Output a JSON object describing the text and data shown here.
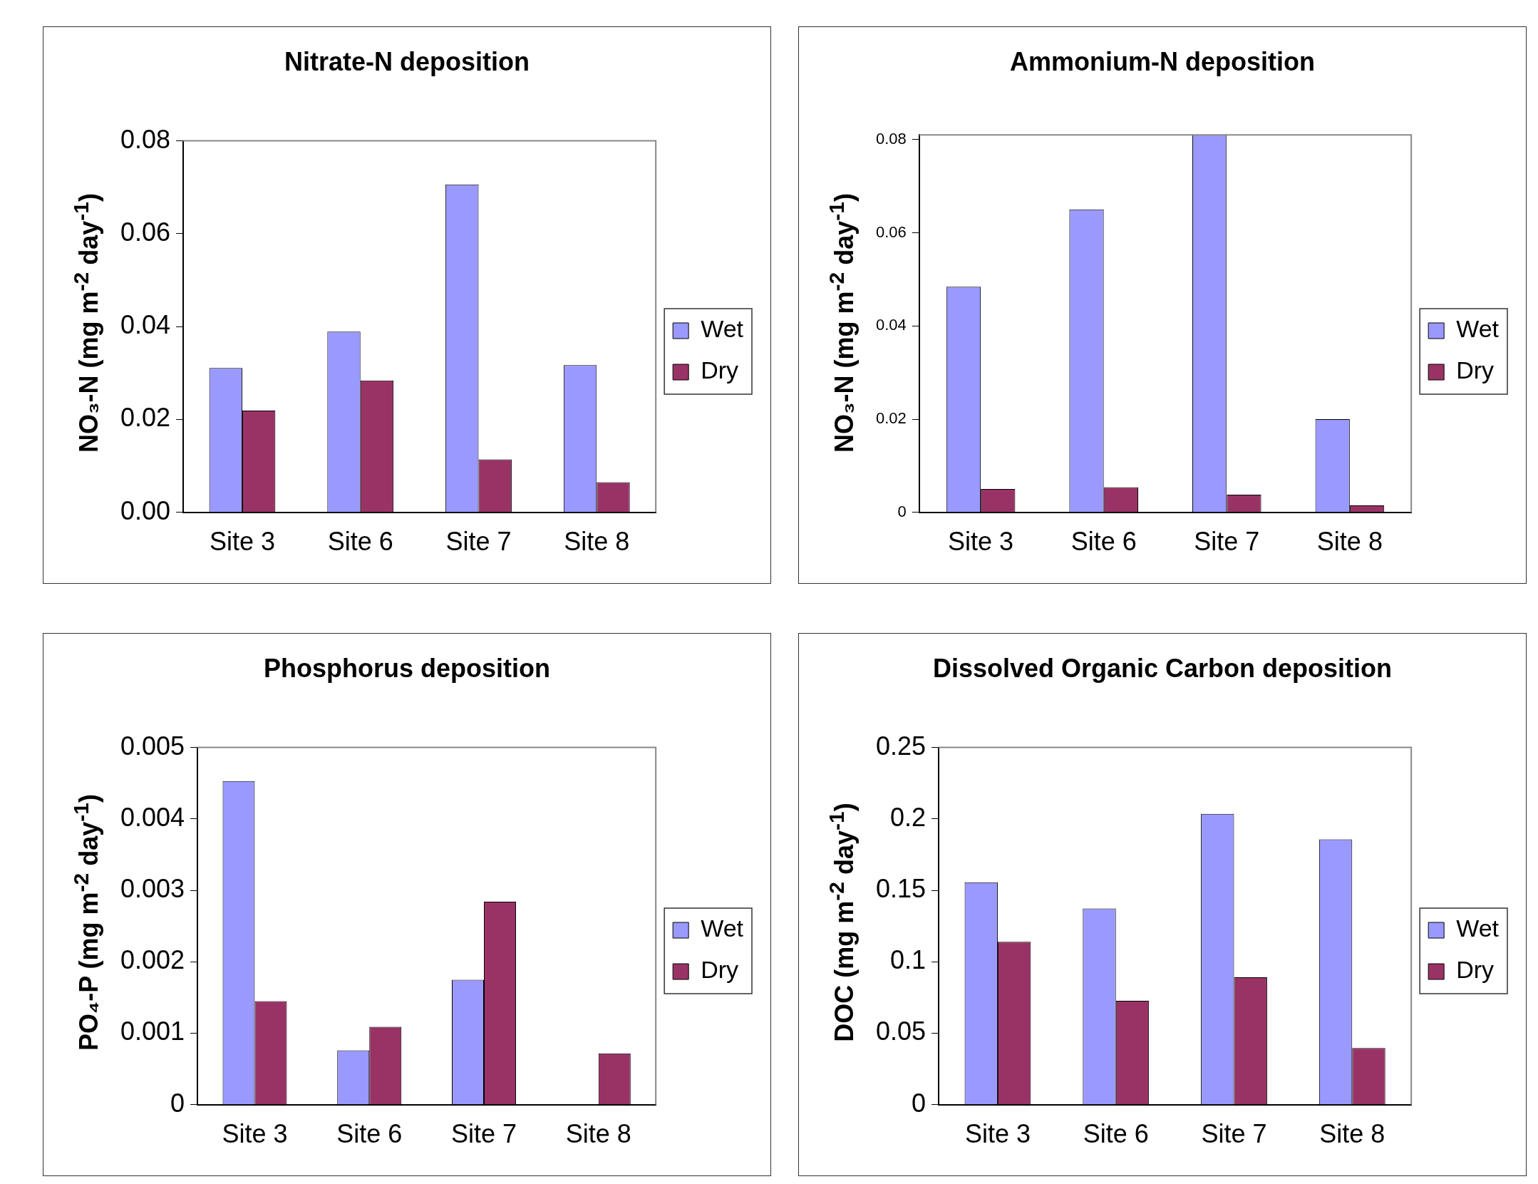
{
  "chart_data": [
    {
      "type": "bar",
      "title": "Nitrate-N deposition",
      "ylabel": "NO₃-N (mg m$^{-2}$ day$^{-1}$)",
      "categories": [
        "Site 3",
        "Site 6",
        "Site 7",
        "Site 8"
      ],
      "series": [
        {
          "name": "Wet",
          "color": "#9999ff",
          "values": [
            0.0311,
            0.0389,
            0.0706,
            0.0317
          ]
        },
        {
          "name": "Dry",
          "color": "#993366",
          "values": [
            0.0219,
            0.0284,
            0.0114,
            0.0065
          ]
        }
      ],
      "ylim": [
        0,
        0.08
      ],
      "yticks": [
        {
          "value": 0,
          "label": "0.00"
        },
        0.02,
        0.04,
        0.06,
        0.08
      ],
      "legend": "right"
    },
    {
      "type": "bar",
      "title": "Ammonium-N deposition",
      "ylabel": "NO₃-N (mg m$^{-2}$ day$^{-1}$)",
      "categories": [
        "Site 3",
        "Site 6",
        "Site 7",
        "Site 8"
      ],
      "series": [
        {
          "name": "Wet",
          "color": "#9999ff",
          "values": [
            0.0484,
            0.065,
            0.081,
            0.02
          ]
        },
        {
          "name": "Dry",
          "color": "#993366",
          "values": [
            0.005,
            0.0054,
            0.0038,
            0.0015
          ]
        }
      ],
      "ylim": [
        0,
        0.081
      ],
      "yticks": [
        0,
        0.02,
        0.04,
        0.06,
        0.08
      ],
      "legend": "right"
    },
    {
      "type": "bar",
      "title": "Phosphorus deposition",
      "ylabel": "PO₄-P (mg m$^{-2}$ day$^{-1}$)",
      "categories": [
        "Site 3",
        "Site 6",
        "Site 7",
        "Site 8"
      ],
      "series": [
        {
          "name": "Wet",
          "color": "#9999ff",
          "values": [
            0.00453,
            0.00076,
            0.00175,
            null
          ]
        },
        {
          "name": "Dry",
          "color": "#993366",
          "values": [
            0.00145,
            0.00109,
            0.00284,
            0.00072
          ]
        }
      ],
      "ylim": [
        0,
        0.005
      ],
      "yticks": [
        0,
        0.001,
        0.002,
        0.003,
        0.004,
        0.005
      ],
      "legend": "right"
    },
    {
      "type": "bar",
      "title": "Dissolved Organic Carbon deposition",
      "ylabel": "DOC (mg m$^{-2}$ day$^{-1}$)",
      "categories": [
        "Site 3",
        "Site 6",
        "Site 7",
        "Site 8"
      ],
      "series": [
        {
          "name": "Wet",
          "color": "#9999ff",
          "values": [
            0.1557,
            0.1373,
            0.2035,
            0.1857
          ]
        },
        {
          "name": "Dry",
          "color": "#993366",
          "values": [
            0.114,
            0.0727,
            0.0892,
            0.0397
          ]
        }
      ],
      "ylim": [
        0,
        0.25
      ],
      "yticks": [
        0,
        0.05,
        0.1,
        0.15,
        0.2,
        0.25
      ],
      "legend": "right"
    }
  ]
}
